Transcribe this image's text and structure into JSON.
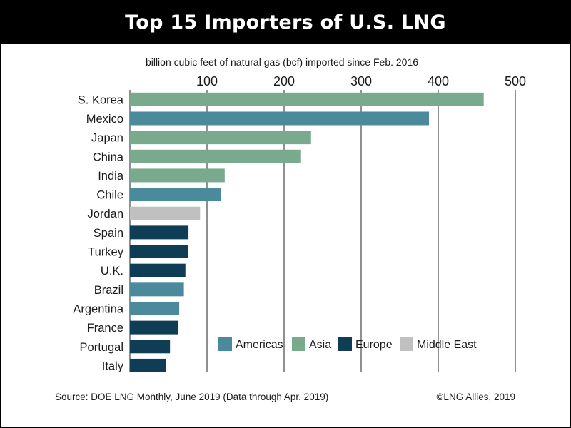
{
  "title": "Top 15 Importers of U.S. LNG",
  "subtitle": "billion cubic feet of natural gas (bcf) imported since Feb. 2016",
  "source": "Source: DOE LNG Monthly, June 2019 (Data through Apr. 2019)",
  "credit": "©LNG Allies, 2019",
  "colors": {
    "Americas": "#4a8a9a",
    "Asia": "#7aaa8d",
    "Europe": "#0f3d55",
    "Middle East": "#c0c0c0"
  },
  "chart_data": {
    "type": "bar",
    "orientation": "horizontal",
    "x_axis_position": "top",
    "xlim": [
      0,
      500
    ],
    "ticks": [
      100,
      200,
      300,
      400,
      500
    ],
    "grid": true,
    "legend_position": "bottom-right",
    "legend": [
      "Americas",
      "Asia",
      "Europe",
      "Middle East"
    ],
    "categories": [
      "S. Korea",
      "Mexico",
      "Japan",
      "China",
      "India",
      "Chile",
      "Jordan",
      "Spain",
      "Turkey",
      "U.K.",
      "Brazil",
      "Argentina",
      "France",
      "Portugal",
      "Italy"
    ],
    "values": [
      459,
      388,
      235,
      222,
      123,
      118,
      91,
      76,
      75,
      72,
      70,
      64,
      63,
      52,
      47
    ],
    "regions": [
      "Asia",
      "Americas",
      "Asia",
      "Asia",
      "Asia",
      "Americas",
      "Middle East",
      "Europe",
      "Europe",
      "Europe",
      "Americas",
      "Americas",
      "Europe",
      "Europe",
      "Europe"
    ]
  }
}
